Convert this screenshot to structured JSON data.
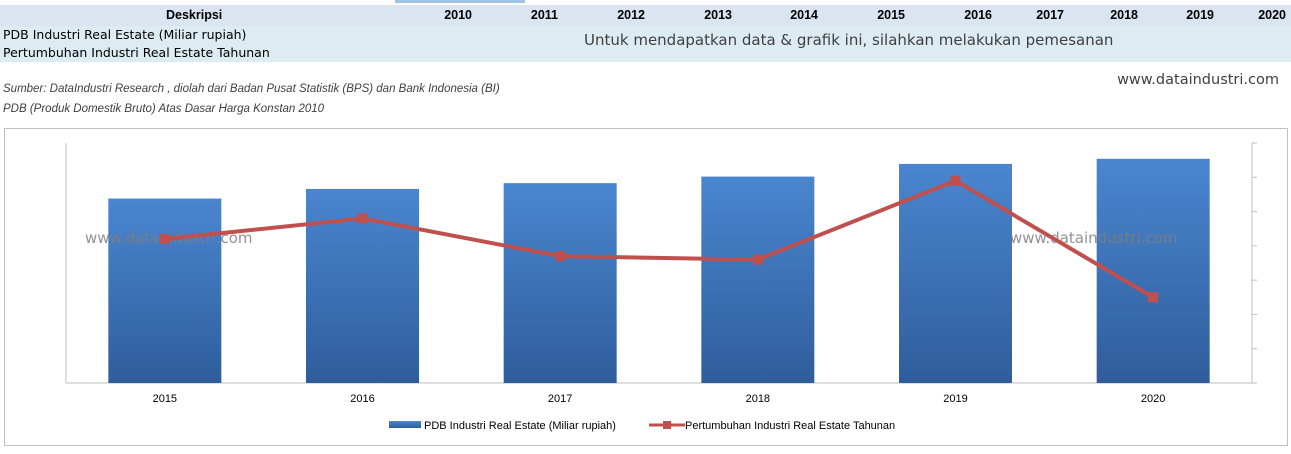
{
  "table": {
    "header_label": "Deskripsi",
    "years": [
      "2010",
      "2011",
      "2012",
      "2013",
      "2014",
      "2015",
      "2016",
      "2017",
      "2018",
      "2019",
      "2020"
    ],
    "rows": [
      "PDB Industri Real Estate (Miliar rupiah)",
      "Pertumbuhan Industri Real Estate Tahunan"
    ],
    "notice": "Untuk mendapatkan data & grafik ini, silahkan melakukan pemesanan"
  },
  "site_url": "www.dataindustri.com",
  "source": {
    "line1": "Sumber: DataIndustri Research , diolah dari Badan Pusat Statistik (BPS) dan Bank Indonesia (BI)",
    "line2": "PDB (Produk Domestik Bruto) Atas Dasar Harga Konstan 2010"
  },
  "colors": {
    "bar_top": "#4a86d0",
    "bar_bottom": "#2f5d9c",
    "line": "#c0504d",
    "axis": "#bfbfbf"
  },
  "chart_data": {
    "type": "bar",
    "categories": [
      "2015",
      "2016",
      "2017",
      "2018",
      "2019",
      "2020"
    ],
    "series": [
      {
        "name": "PDB Industri Real Estate (Miliar rupiah)",
        "chart_type": "bar",
        "axis": "left",
        "values": [
          5.38,
          5.66,
          5.83,
          6.02,
          6.39,
          6.54
        ]
      },
      {
        "name": "Pertumbuhan Industri Real Estate Tahunan",
        "chart_type": "line",
        "axis": "right",
        "values": [
          4.2,
          4.8,
          3.7,
          3.6,
          5.9,
          2.5
        ]
      }
    ],
    "ylim_left": [
      0,
      7
    ],
    "ylim_right": [
      0,
      7
    ],
    "y_tick_labels_shown": false,
    "grid": false,
    "legend_position": "bottom",
    "watermark": "www.dataindustri.com"
  }
}
